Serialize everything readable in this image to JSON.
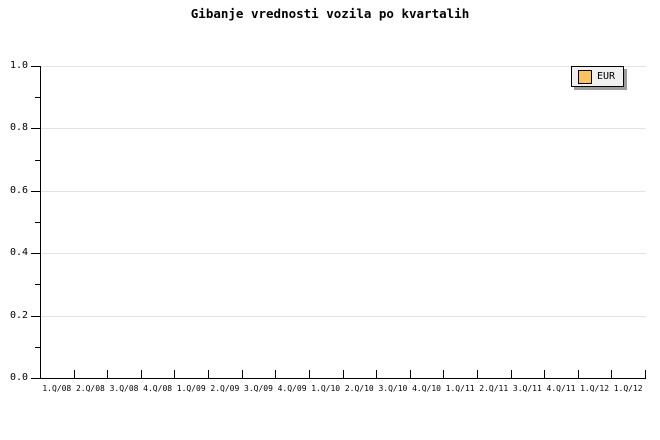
{
  "title": "Gibanje vrednosti vozila po kvartalih",
  "legend": {
    "label": "EUR",
    "swatch_color": "#fbc35f",
    "background": "#f0f0f0",
    "shadow_color": "#9c9c9c"
  },
  "axes": {
    "y_tick_labels": [
      "1.0",
      "0.8",
      "0.6",
      "0.4",
      "0.2",
      "0.0"
    ],
    "x_tick_labels": [
      "1.Q/08",
      "2.Q/08",
      "3.Q/08",
      "4.Q/08",
      "1.Q/09",
      "2.Q/09",
      "3.Q/09",
      "4.Q/09",
      "1.Q/10",
      "2.Q/10",
      "3.Q/10",
      "4.Q/10",
      "1.Q/11",
      "2.Q/11",
      "3.Q/11",
      "4.Q/11",
      "1.Q/12",
      "1.Q/12"
    ]
  },
  "colors": {
    "background": "#ffffff",
    "axis": "#000000",
    "grid": "#e2e2e2",
    "text": "#000000"
  },
  "chart_data": {
    "type": "bar",
    "title": "Gibanje vrednosti vozila po kvartalih",
    "categories": [
      "1.Q/08",
      "2.Q/08",
      "3.Q/08",
      "4.Q/08",
      "1.Q/09",
      "2.Q/09",
      "3.Q/09",
      "4.Q/09",
      "1.Q/10",
      "2.Q/10",
      "3.Q/10",
      "4.Q/10",
      "1.Q/11",
      "2.Q/11",
      "3.Q/11",
      "4.Q/11",
      "1.Q/12",
      "1.Q/12"
    ],
    "series": [
      {
        "name": "EUR",
        "color": "#fbc35f",
        "values": []
      }
    ],
    "xlabel": "",
    "ylabel": "",
    "ylim": [
      0.0,
      1.0
    ],
    "yticks": [
      0.0,
      0.2,
      0.4,
      0.6,
      0.8,
      1.0
    ],
    "y_minor_tick_step": 0.1,
    "grid": "horizontal major gridlines only, light gray",
    "legend_position": "top-right",
    "plot_empty": true
  }
}
